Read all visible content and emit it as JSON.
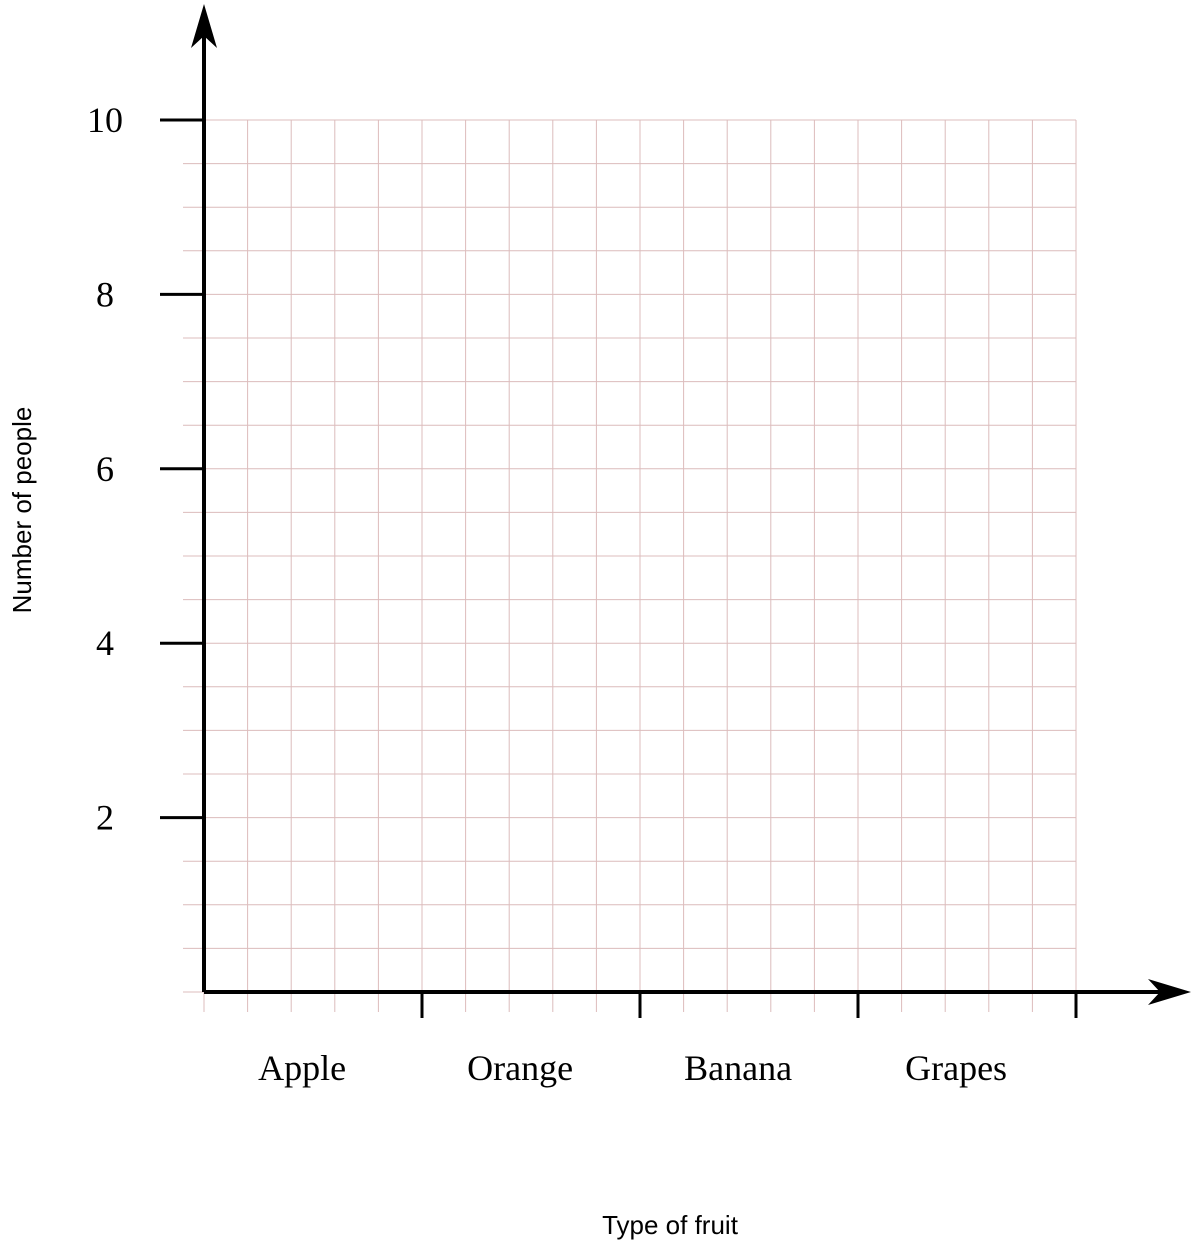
{
  "chart_data": {
    "type": "bar",
    "x_label": "Type of fruit",
    "y_label": "Number of people",
    "categories": [
      "Apple",
      "Orange",
      "Banana",
      "Grapes"
    ],
    "ylim": [
      0,
      10
    ],
    "yticks": [
      2,
      4,
      6,
      8,
      10
    ],
    "grid": true
  }
}
